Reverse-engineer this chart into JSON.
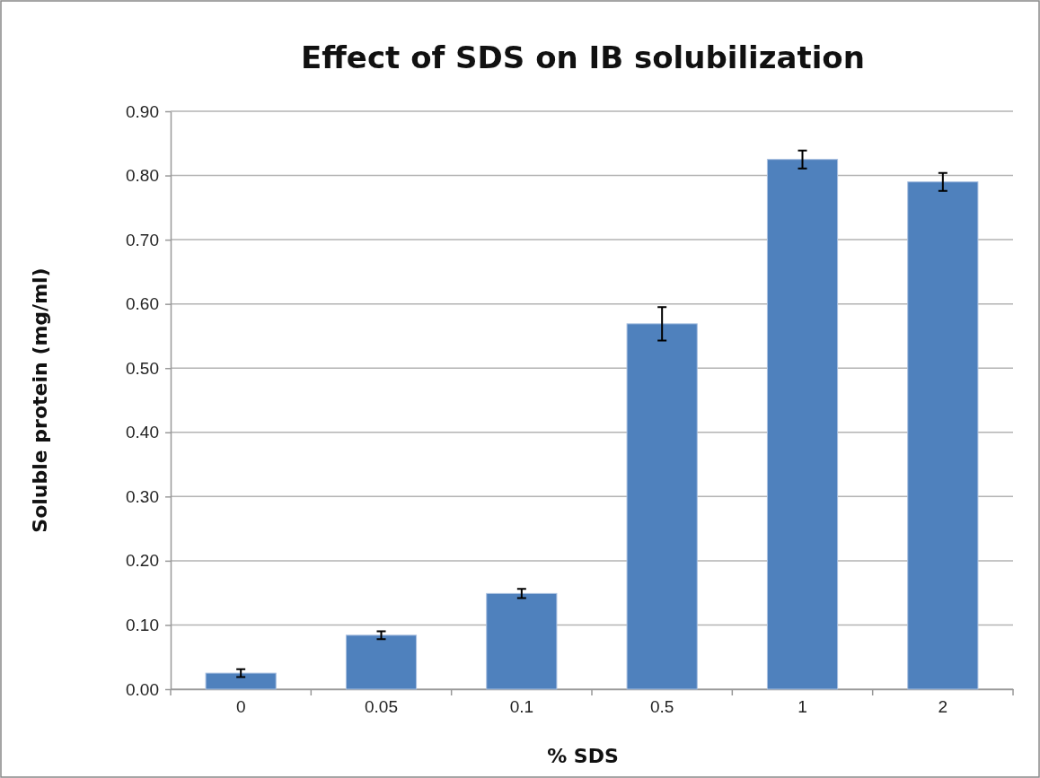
{
  "chart_data": {
    "type": "bar",
    "title": "Effect of SDS on IB solubilization",
    "xlabel": "% SDS",
    "ylabel": "Soluble protein (mg/ml)",
    "categories": [
      "0",
      "0.05",
      "0.1",
      "0.5",
      "1",
      "2"
    ],
    "values": [
      0.025,
      0.084,
      0.149,
      0.569,
      0.825,
      0.79
    ],
    "errors": [
      0.006,
      0.006,
      0.007,
      0.026,
      0.014,
      0.014
    ],
    "color": "#4f81bd",
    "ylim": [
      0,
      0.9
    ],
    "yticks": [
      {
        "value": 0,
        "label": "0.00"
      },
      {
        "value": 0.1,
        "label": "0.10"
      },
      {
        "value": 0.2,
        "label": "0.20"
      },
      {
        "value": 0.3,
        "label": "0.30"
      },
      {
        "value": 0.4,
        "label": "0.40"
      },
      {
        "value": 0.5,
        "label": "0.50"
      },
      {
        "value": 0.6,
        "label": "0.60"
      },
      {
        "value": 0.7,
        "label": "0.70"
      },
      {
        "value": 0.8,
        "label": "0.80"
      },
      {
        "value": 0.9,
        "label": "0.90"
      }
    ],
    "grid": "y"
  }
}
